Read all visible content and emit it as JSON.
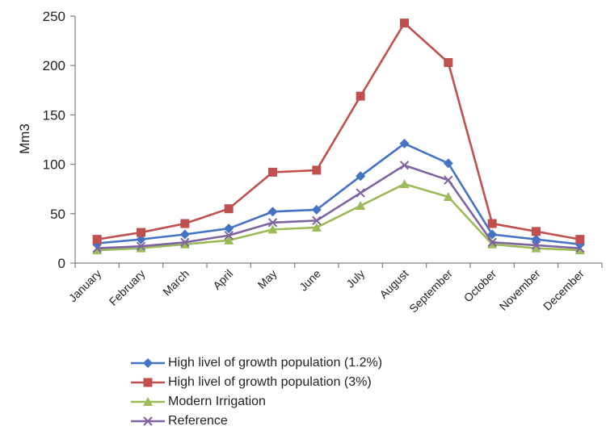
{
  "chart_data": {
    "type": "line",
    "ylabel": "Mm3",
    "xlabel": "",
    "ylim": [
      0,
      250
    ],
    "yticks": [
      0,
      50,
      100,
      150,
      200,
      250
    ],
    "grid": false,
    "legend_position": "bottom",
    "categories": [
      "January",
      "February",
      "March",
      "April",
      "May",
      "June",
      "July",
      "August",
      "September",
      "October",
      "November",
      "December"
    ],
    "series": [
      {
        "name": "High livel of growth population (1.2%)",
        "color": "#4472C4",
        "marker": "diamond",
        "values": [
          20,
          24,
          29,
          35,
          52,
          54,
          88,
          121,
          101,
          29,
          24,
          19
        ]
      },
      {
        "name": "High livel of growth population (3%)",
        "color": "#C0504D",
        "marker": "square",
        "values": [
          24,
          31,
          40,
          55,
          92,
          94,
          169,
          243,
          203,
          40,
          32,
          24
        ]
      },
      {
        "name": "Modern Irrigation",
        "color": "#9BBB59",
        "marker": "triangle",
        "values": [
          13,
          15,
          19,
          23,
          34,
          36,
          58,
          80,
          67,
          19,
          15,
          13
        ]
      },
      {
        "name": "Reference",
        "color": "#8064A2",
        "marker": "x",
        "values": [
          15,
          17,
          21,
          28,
          41,
          43,
          71,
          99,
          84,
          21,
          18,
          15
        ]
      }
    ]
  }
}
